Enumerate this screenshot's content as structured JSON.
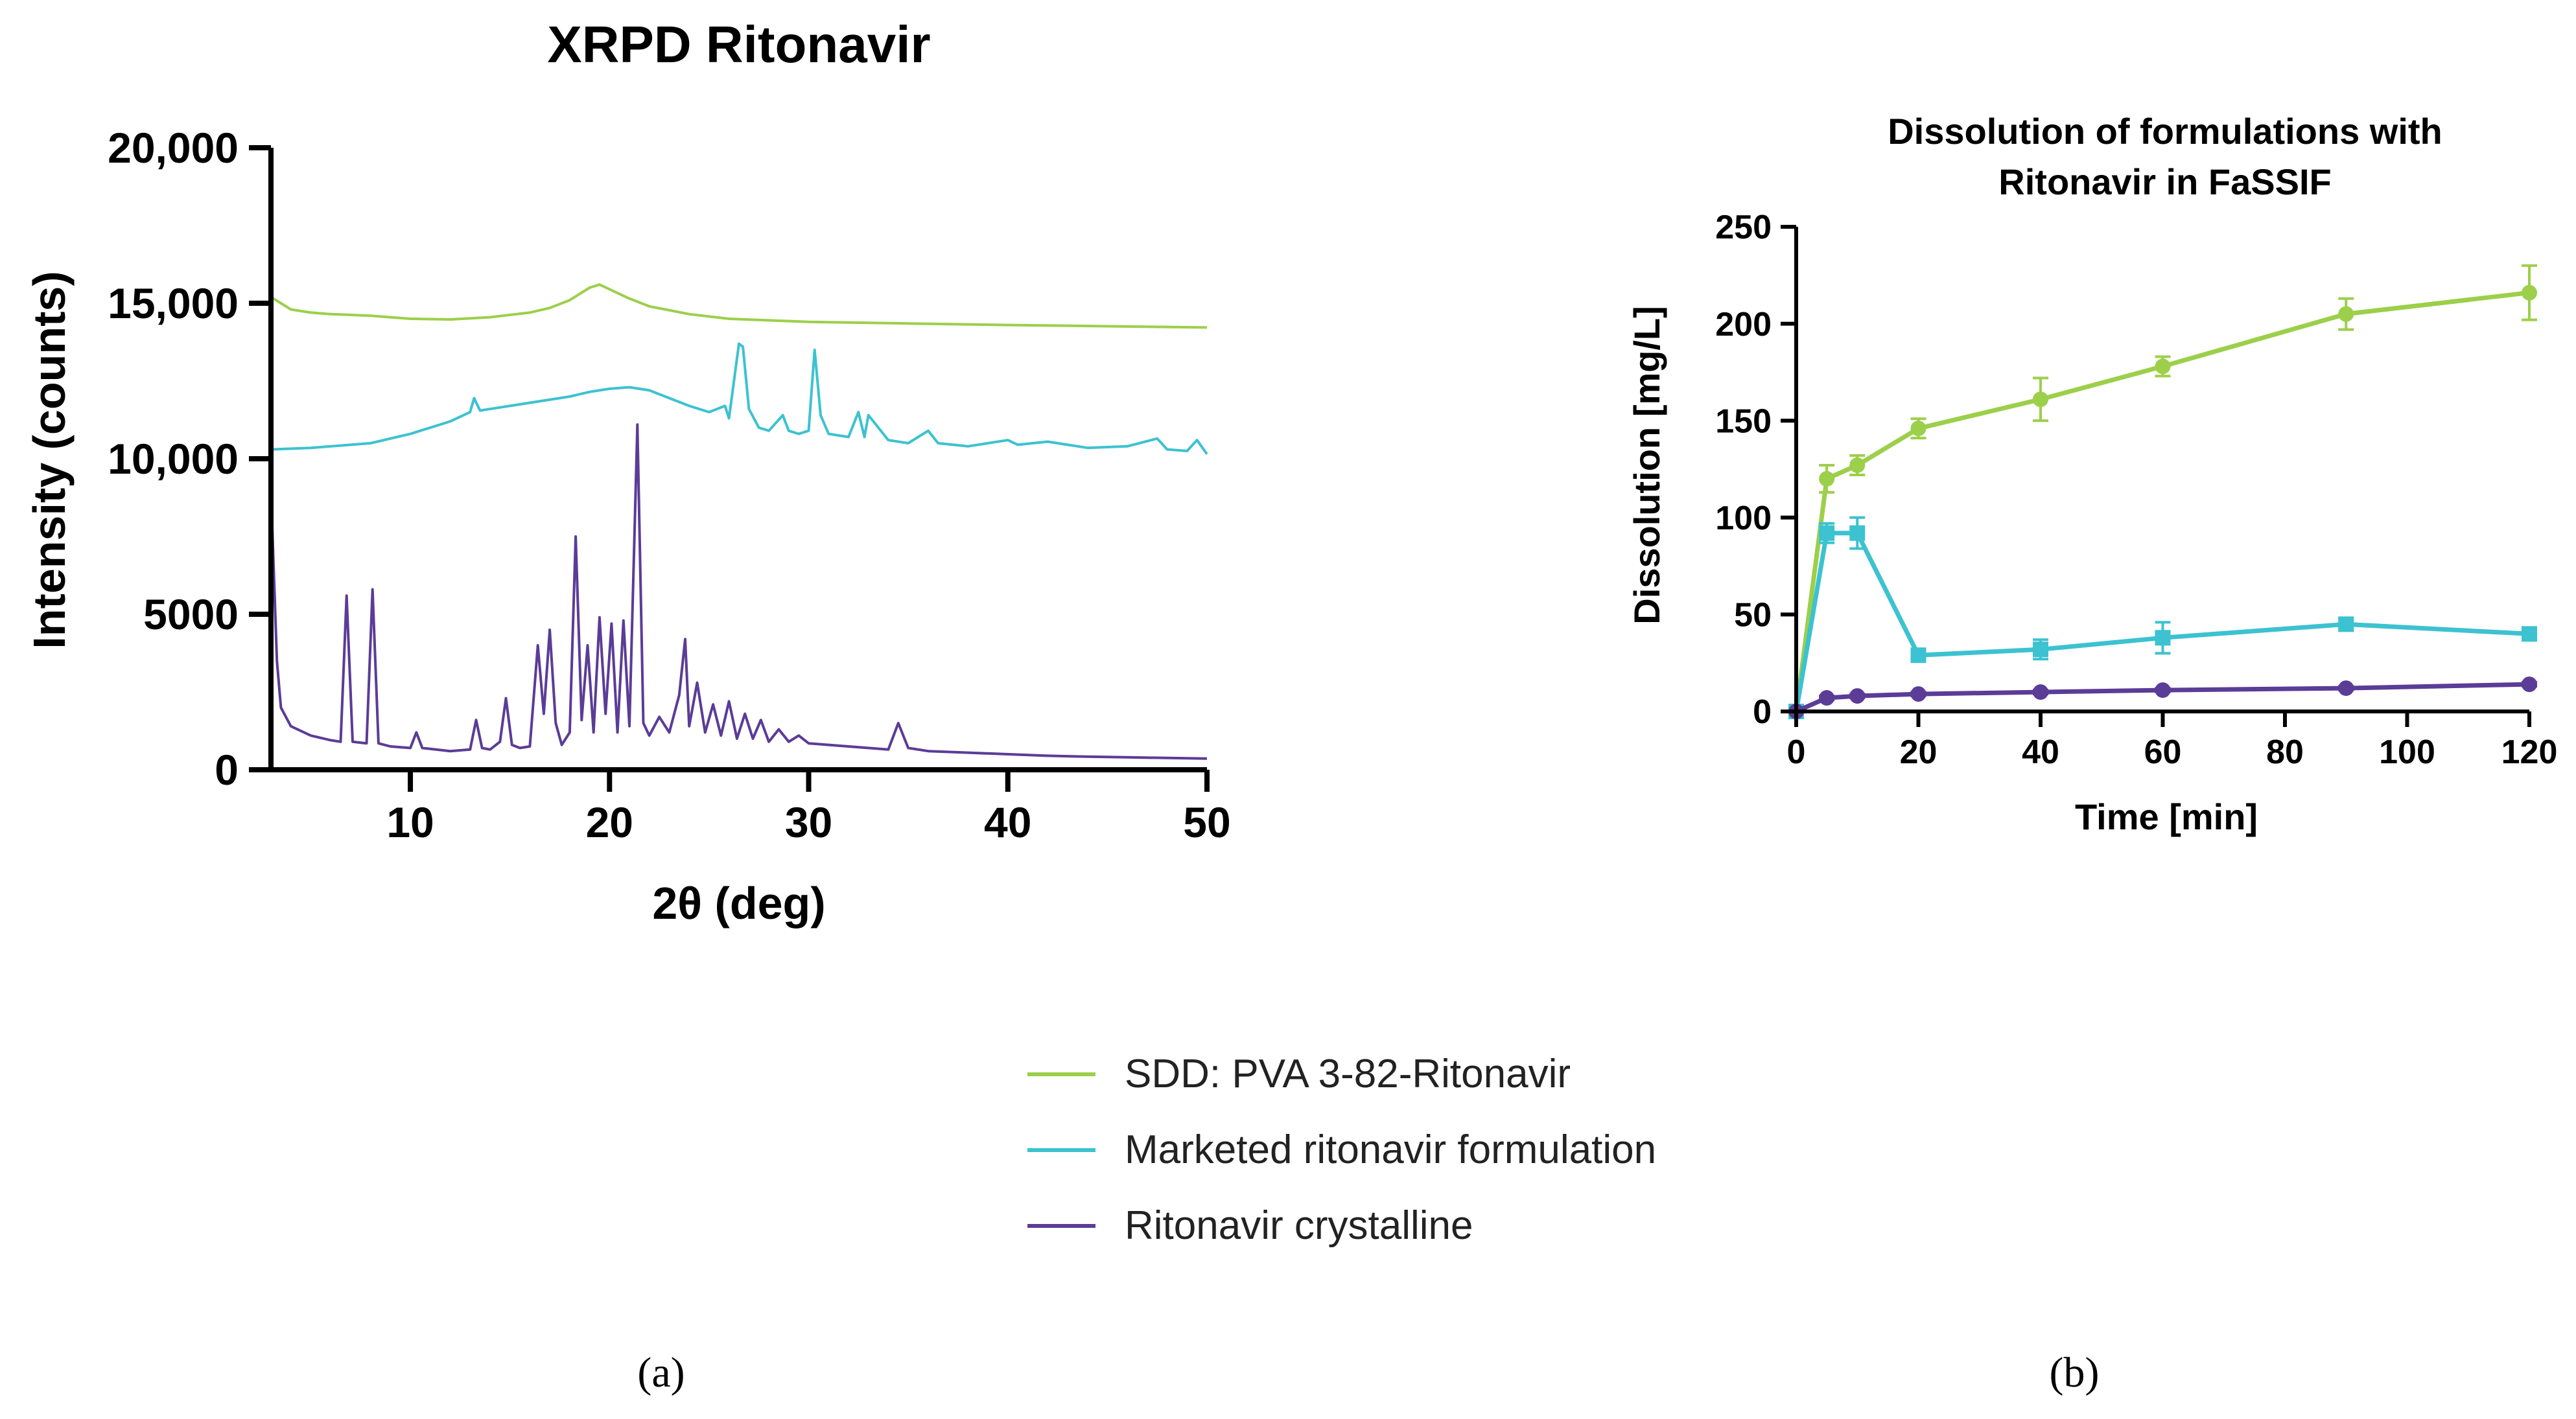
{
  "chart_data": [
    {
      "type": "line",
      "title": "XRPD Ritonavir",
      "xlabel": "2θ (deg)",
      "ylabel": "Intensity (counts)",
      "xlim": [
        3,
        50
      ],
      "ylim": [
        0,
        20000
      ],
      "xticks": [
        10,
        20,
        30,
        40,
        50
      ],
      "xtick_labels": [
        "10",
        "20",
        "30",
        "40",
        "50"
      ],
      "yticks": [
        0,
        5000,
        10000,
        15000,
        20000
      ],
      "ytick_labels": [
        "0",
        "5000",
        "10,000",
        "15,000",
        "20,000"
      ],
      "series": [
        {
          "name": "SDD: PVA 3-82-Ritonavir",
          "color": "#9ccf4a",
          "x": [
            3,
            3.5,
            4,
            5,
            6,
            8,
            10,
            12,
            14,
            16,
            17,
            18,
            19,
            19.5,
            20,
            21,
            22,
            24,
            26,
            28,
            30,
            35,
            40,
            45,
            50
          ],
          "y": [
            15200,
            15000,
            14800,
            14700,
            14650,
            14600,
            14500,
            14480,
            14550,
            14700,
            14850,
            15100,
            15500,
            15600,
            15450,
            15150,
            14900,
            14650,
            14500,
            14450,
            14400,
            14350,
            14300,
            14260,
            14220
          ]
        },
        {
          "name": "Marketed ritonavir formulation",
          "color": "#3cc2d0",
          "x": [
            3,
            5,
            8,
            10,
            12,
            13,
            13.2,
            13.5,
            14,
            16,
            18,
            19,
            20,
            21,
            22,
            23,
            24,
            25,
            25.8,
            26,
            26.5,
            26.7,
            27,
            27.5,
            28,
            28.7,
            29,
            29.5,
            30,
            30.3,
            30.6,
            31,
            32,
            32.5,
            32.8,
            33,
            34,
            35,
            36,
            36.5,
            38,
            40,
            40.5,
            42,
            44,
            46,
            47.5,
            48,
            49,
            49.5,
            50
          ],
          "y": [
            10300,
            10350,
            10500,
            10800,
            11200,
            11500,
            11950,
            11550,
            11600,
            11800,
            12000,
            12150,
            12250,
            12300,
            12200,
            11950,
            11700,
            11500,
            11700,
            11300,
            13700,
            13600,
            11600,
            11000,
            10900,
            11400,
            10900,
            10800,
            10900,
            13500,
            11400,
            10800,
            10700,
            11500,
            10700,
            11400,
            10600,
            10500,
            10900,
            10500,
            10400,
            10600,
            10450,
            10550,
            10350,
            10400,
            10650,
            10300,
            10250,
            10600,
            10150
          ]
        },
        {
          "name": "Ritonavir crystalline",
          "color": "#5b3c97",
          "x": [
            3,
            3.3,
            3.5,
            4,
            5,
            6,
            6.5,
            6.8,
            7.1,
            7.8,
            8.1,
            8.4,
            9,
            10,
            10.3,
            10.6,
            12,
            13,
            13.3,
            13.6,
            14,
            14.5,
            14.8,
            15.1,
            15.5,
            16,
            16.4,
            16.7,
            17,
            17.3,
            17.6,
            18,
            18.3,
            18.6,
            18.9,
            19.2,
            19.5,
            19.8,
            20.1,
            20.4,
            20.7,
            21,
            21.4,
            21.7,
            22,
            22.5,
            23,
            23.5,
            23.8,
            24,
            24.4,
            24.8,
            25.2,
            25.6,
            26,
            26.4,
            26.8,
            27.2,
            27.6,
            28,
            28.5,
            29,
            29.5,
            30,
            31,
            32,
            33,
            34,
            34.5,
            35,
            36,
            38,
            40,
            42,
            44,
            46,
            48,
            50
          ],
          "y": [
            9000,
            3500,
            2000,
            1400,
            1100,
            950,
            900,
            5600,
            900,
            850,
            5800,
            850,
            750,
            700,
            1200,
            700,
            600,
            650,
            1600,
            700,
            650,
            900,
            2300,
            800,
            700,
            750,
            4000,
            1800,
            4500,
            1500,
            800,
            1200,
            7500,
            1600,
            4000,
            1200,
            4900,
            1800,
            4700,
            1200,
            4800,
            1400,
            11100,
            1500,
            1100,
            1700,
            1200,
            2400,
            4200,
            1400,
            2800,
            1200,
            2100,
            1100,
            2200,
            1000,
            1800,
            1000,
            1600,
            900,
            1300,
            900,
            1100,
            850,
            800,
            750,
            700,
            650,
            1500,
            700,
            600,
            550,
            500,
            450,
            420,
            400,
            380,
            360
          ]
        }
      ]
    },
    {
      "type": "line",
      "title": "Dissolution of formulations with Ritonavir in FaSSIF",
      "title_lines": [
        "Dissolution of formulations with",
        "Ritonavir in FaSSIF"
      ],
      "xlabel": "Time [min]",
      "ylabel": "Dissolution [mg/L]",
      "xlim": [
        0,
        120
      ],
      "ylim": [
        0,
        250
      ],
      "xticks": [
        0,
        20,
        40,
        60,
        80,
        100,
        120
      ],
      "xtick_labels": [
        "0",
        "20",
        "40",
        "60",
        "80",
        "100",
        "120"
      ],
      "yticks": [
        0,
        50,
        100,
        150,
        200,
        250
      ],
      "ytick_labels": [
        "0",
        "50",
        "100",
        "150",
        "200",
        "250"
      ],
      "series": [
        {
          "name": "SDD: PVA 3-82-Ritonavir",
          "color": "#9ccf4a",
          "marker": "circle",
          "x": [
            0,
            5,
            10,
            20,
            40,
            60,
            90,
            120
          ],
          "y": [
            0,
            120,
            127,
            146,
            161,
            178,
            205,
            216
          ],
          "err": [
            0,
            7,
            5,
            5,
            11,
            5,
            8,
            14
          ]
        },
        {
          "name": "Marketed ritonavir formulation",
          "color": "#3cc2d0",
          "marker": "square",
          "x": [
            0,
            5,
            10,
            20,
            40,
            60,
            90,
            120
          ],
          "y": [
            0,
            92,
            92,
            29,
            32,
            38,
            45,
            40
          ],
          "err": [
            0,
            5,
            8,
            3,
            5,
            8,
            3,
            3
          ]
        },
        {
          "name": "Ritonavir crystalline",
          "color": "#5b3c97",
          "marker": "circle",
          "x": [
            0,
            5,
            10,
            20,
            40,
            60,
            90,
            120
          ],
          "y": [
            0,
            7,
            8,
            9,
            10,
            11,
            12,
            14
          ],
          "err": [
            0,
            1,
            1,
            1,
            1,
            1,
            1,
            1
          ]
        }
      ]
    }
  ],
  "legend": {
    "items": [
      {
        "label": "SDD: PVA 3-82-Ritonavir",
        "color": "#9ccf4a"
      },
      {
        "label": "Marketed ritonavir formulation",
        "color": "#3cc2d0"
      },
      {
        "label": "Ritonavir crystalline",
        "color": "#5b3c97"
      }
    ]
  },
  "panel_labels": {
    "a": "(a)",
    "b": "(b)"
  }
}
